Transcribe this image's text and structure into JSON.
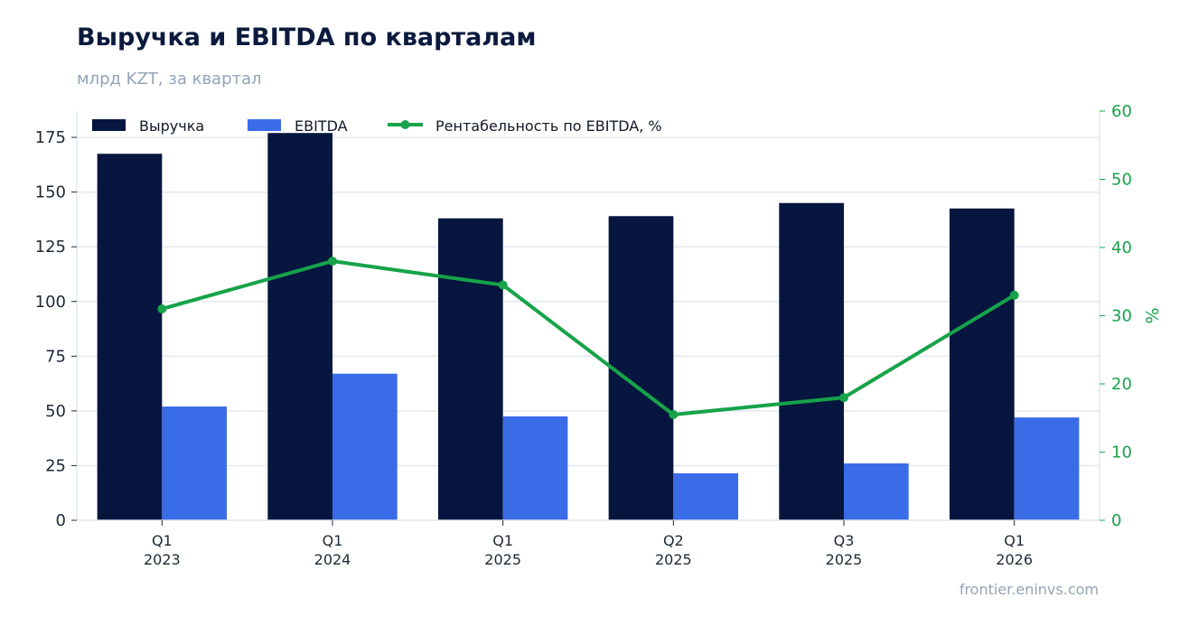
{
  "title": "Выручка и EBITDA по кварталам",
  "subtitle": "млрд KZT, за квартал",
  "source": "frontier.eninvs.com",
  "colors": {
    "revenue": "#06163f",
    "ebitda": "#3b6ce8",
    "margin": "#16a34a",
    "grid": "#e2e8f0",
    "axis_text": "#1f2937",
    "right_axis_text": "#16a34a"
  },
  "chart_data": {
    "type": "bar",
    "categories": [
      [
        "Q1",
        "2023"
      ],
      [
        "Q1",
        "2024"
      ],
      [
        "Q1",
        "2025"
      ],
      [
        "Q2",
        "2025"
      ],
      [
        "Q3",
        "2025"
      ],
      [
        "Q1",
        "2026"
      ]
    ],
    "series": [
      {
        "name": "Выручка",
        "kind": "bar",
        "axis": "left",
        "values": [
          167.5,
          177,
          138,
          139,
          145,
          142.5
        ]
      },
      {
        "name": "EBITDA",
        "kind": "bar",
        "axis": "left",
        "values": [
          52,
          67,
          47.5,
          21.5,
          26,
          47
        ]
      },
      {
        "name": "Рентабельность по EBITDA, %",
        "kind": "line",
        "axis": "right",
        "values": [
          31,
          38,
          34.5,
          15.5,
          18,
          33
        ]
      }
    ],
    "ylim": [
      0,
      187
    ],
    "yticks": [
      0,
      25,
      50,
      75,
      100,
      125,
      150,
      175
    ],
    "y2lim": [
      0,
      60
    ],
    "y2ticks": [
      0,
      10,
      20,
      30,
      40,
      50,
      60
    ],
    "y2label": "%",
    "grid": true,
    "legend_position": "top-left"
  }
}
